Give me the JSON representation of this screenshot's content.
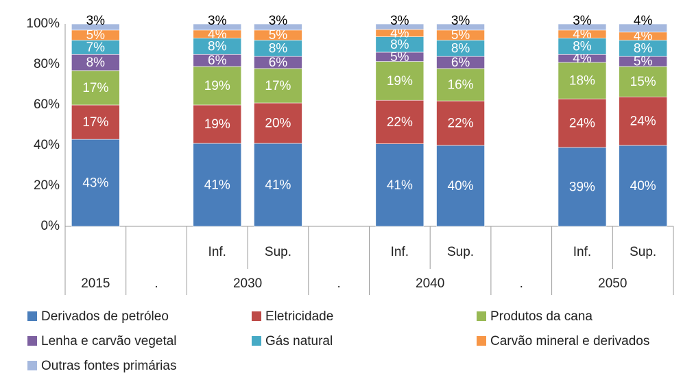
{
  "chart_data": {
    "type": "stacked_bar",
    "groups": [
      {
        "name": "2015",
        "categories": [
          null
        ]
      },
      {
        "name": ".",
        "categories": [
          null
        ]
      },
      {
        "name": "2030",
        "categories": [
          "Inf.",
          "Sup."
        ]
      },
      {
        "name": ".",
        "categories": [
          null
        ]
      },
      {
        "name": "2040",
        "categories": [
          "Inf.",
          "Sup."
        ]
      },
      {
        "name": ".",
        "categories": [
          null
        ]
      },
      {
        "name": "2050",
        "categories": [
          "Inf.",
          "Sup."
        ]
      }
    ],
    "ylim": [
      0,
      100
    ],
    "yticks": [
      {
        "value": 0,
        "label": "0%"
      },
      {
        "value": 20,
        "label": "20%"
      },
      {
        "value": 40,
        "label": "40%"
      },
      {
        "value": 60,
        "label": "60%"
      },
      {
        "value": 80,
        "label": "80%"
      },
      {
        "value": 100,
        "label": "100%"
      }
    ],
    "series": [
      {
        "name": "Derivados de petróleo",
        "color": "#4a7ebb",
        "values": [
          43,
          null,
          41,
          41,
          null,
          40.8,
          40,
          null,
          39,
          40
        ],
        "value_labels": [
          "43%",
          null,
          "41%",
          "41%",
          null,
          "41%",
          "40%",
          null,
          "39%",
          "40%"
        ]
      },
      {
        "name": "Eletricidade",
        "color": "#be4b48",
        "values": [
          17,
          null,
          19,
          20,
          null,
          21.5,
          22,
          null,
          24,
          24
        ],
        "value_labels": [
          "17%",
          null,
          "19%",
          "20%",
          null,
          "22%",
          "22%",
          null,
          "24%",
          "24%"
        ]
      },
      {
        "name": "Produtos da cana",
        "color": "#98b954",
        "values": [
          17,
          null,
          19,
          17,
          null,
          19.2,
          16,
          null,
          18,
          15
        ],
        "value_labels": [
          "17%",
          null,
          "19%",
          "17%",
          null,
          "19%",
          "16%",
          null,
          "18%",
          "15%"
        ]
      },
      {
        "name": "Lenha e carvão vegetal",
        "color": "#7d60a0",
        "values": [
          8,
          null,
          6,
          6,
          null,
          4.6,
          6,
          null,
          4,
          5
        ],
        "value_labels": [
          "8%",
          null,
          "6%",
          "6%",
          null,
          "5%",
          "6%",
          null,
          "4%",
          "5%"
        ]
      },
      {
        "name": "Gás natural",
        "color": "#46aac5",
        "values": [
          7,
          null,
          8,
          8,
          null,
          7.6,
          8,
          null,
          8,
          8
        ],
        "value_labels": [
          "7%",
          null,
          "8%",
          "8%",
          null,
          "8%",
          "8%",
          null,
          "8%",
          "8%"
        ]
      },
      {
        "name": "Carvão mineral e derivados",
        "color": "#f79646",
        "values": [
          5,
          null,
          4,
          5,
          null,
          3.6,
          5,
          null,
          4,
          4
        ],
        "value_labels": [
          "5%",
          null,
          "4%",
          "5%",
          null,
          "4%",
          "5%",
          null,
          "4%",
          "4%"
        ]
      },
      {
        "name": "Outras fontes primárias",
        "color": "#a5b8de",
        "values": [
          3,
          null,
          3,
          3,
          null,
          2.7,
          3,
          null,
          3,
          4
        ],
        "value_labels": [
          "3%",
          null,
          "3%",
          "3%",
          null,
          "3%",
          "3%",
          null,
          "3%",
          "4%"
        ]
      }
    ]
  }
}
